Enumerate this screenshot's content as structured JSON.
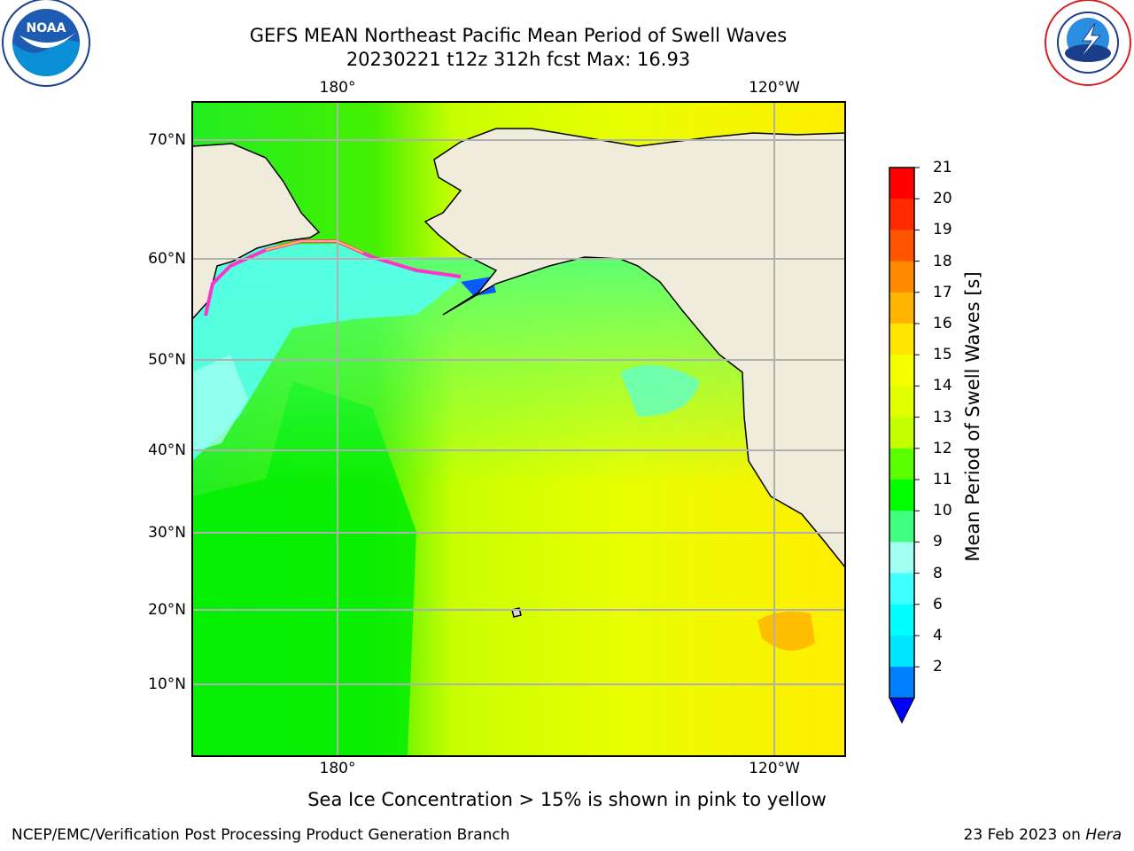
{
  "header": {
    "title_line1": "GEFS MEAN Northeast Pacific Mean Period of Swell Waves",
    "title_line2": "20230221 t12z 312h fcst   Max: 16.93"
  },
  "logos": {
    "noaa_text": "NOAA",
    "noaa_ring_text": "NATIONAL OCEANIC AND ATMOSPHERIC ADMINISTRATION · U.S. DEPARTMENT OF COMMERCE",
    "nws_ring_text": "NATIONAL WEATHER SERVICE"
  },
  "map": {
    "lon_labels_top": [
      "180°",
      "120°W"
    ],
    "lon_labels_bottom": [
      "180°",
      "120°W"
    ],
    "lat_labels": [
      "70°N",
      "60°N",
      "50°N",
      "40°N",
      "30°N",
      "20°N",
      "10°N"
    ],
    "colors": {
      "land": "#efecdc",
      "ice_free_white": "#ffffff",
      "grid": "#b0b0b0"
    }
  },
  "colorbar": {
    "label": "Mean Period of Swell Waves [s]",
    "ticks": [
      "21",
      "20",
      "19",
      "18",
      "17",
      "16",
      "15",
      "14",
      "13",
      "12",
      "11",
      "10",
      "9",
      "8",
      "6",
      "4",
      "2"
    ],
    "levels": [
      {
        "range": "20-21",
        "color": "#ff0000"
      },
      {
        "range": "19-20",
        "color": "#ff2a00"
      },
      {
        "range": "18-19",
        "color": "#ff5500"
      },
      {
        "range": "17-18",
        "color": "#ff8a00"
      },
      {
        "range": "16-17",
        "color": "#ffb400"
      },
      {
        "range": "15-16",
        "color": "#ffe600"
      },
      {
        "range": "14-15",
        "color": "#f5ff00"
      },
      {
        "range": "13-14",
        "color": "#e1ff00"
      },
      {
        "range": "12-13",
        "color": "#c3ff00"
      },
      {
        "range": "11-12",
        "color": "#5aff00"
      },
      {
        "range": "10-11",
        "color": "#00ff00"
      },
      {
        "range": "9-10",
        "color": "#40ff80"
      },
      {
        "range": "8-9",
        "color": "#a0fff0"
      },
      {
        "range": "6-8",
        "color": "#40ffff"
      },
      {
        "range": "4-6",
        "color": "#00ffff"
      },
      {
        "range": "2-4",
        "color": "#00e5ff"
      },
      {
        "range": "<2",
        "color": "#0080ff"
      }
    ],
    "extend_color": "#0000ff"
  },
  "note": "Sea Ice Concentration > 15% is shown in pink to yellow",
  "footer": {
    "left": "NCEP/EMC/Verification Post Processing Product Generation Branch",
    "right_prefix": "23 Feb 2023 on ",
    "right_host": "Hera"
  }
}
